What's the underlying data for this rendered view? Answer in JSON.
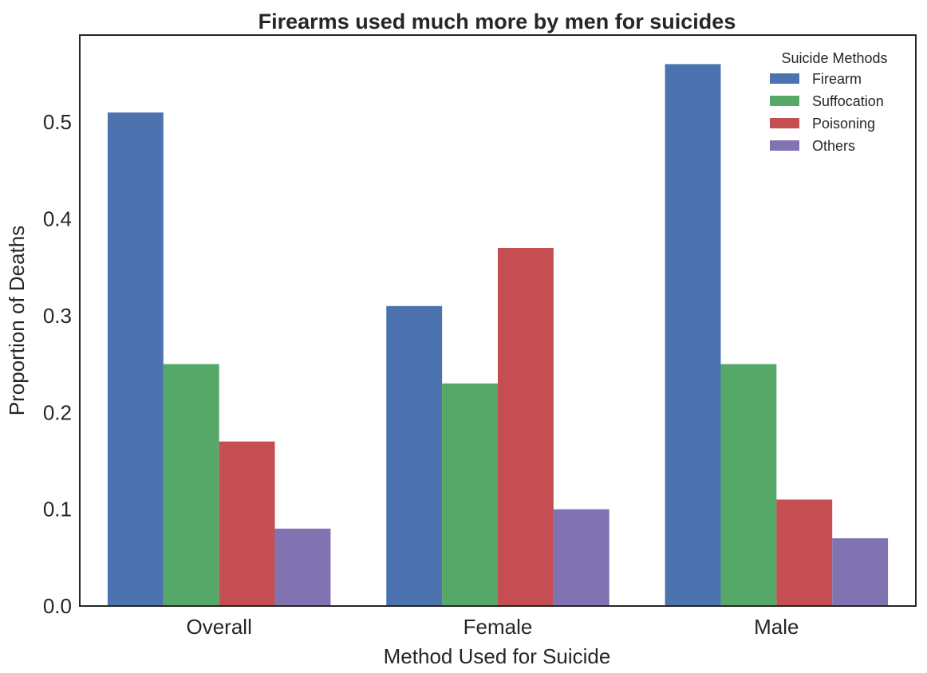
{
  "chart_data": {
    "type": "bar",
    "title": "Firearms used much more by men for suicides",
    "xlabel": "Method Used for Suicide",
    "ylabel": "Proportion of Deaths",
    "categories": [
      "Overall",
      "Female",
      "Male"
    ],
    "series": [
      {
        "name": "Firearm",
        "color": "#4c72b0",
        "values": [
          0.51,
          0.31,
          0.56
        ]
      },
      {
        "name": "Suffocation",
        "color": "#55a868",
        "values": [
          0.25,
          0.23,
          0.25
        ]
      },
      {
        "name": "Poisoning",
        "color": "#c44e52",
        "values": [
          0.17,
          0.37,
          0.11
        ]
      },
      {
        "name": "Others",
        "color": "#8172b2",
        "values": [
          0.08,
          0.1,
          0.07
        ]
      }
    ],
    "ylim": [
      0,
      0.59
    ],
    "yticks": [
      "0.0",
      "0.1",
      "0.2",
      "0.3",
      "0.4",
      "0.5"
    ],
    "ytick_values": [
      0,
      0.1,
      0.2,
      0.3,
      0.4,
      0.5
    ],
    "grid": false,
    "legend": {
      "title": "Suicide Methods",
      "placement": "top-right"
    }
  }
}
